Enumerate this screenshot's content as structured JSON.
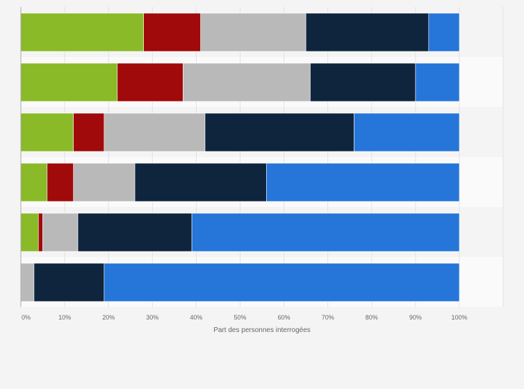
{
  "chart_data": {
    "type": "bar",
    "orientation": "horizontal",
    "stacked": true,
    "categories": [
      "",
      "",
      "",
      "",
      "",
      ""
    ],
    "x_ticks": [
      "0%",
      "10%",
      "20%",
      "30%",
      "40%",
      "50%",
      "60%",
      "70%",
      "80%",
      "90%",
      "100%"
    ],
    "xlim": [
      0,
      100
    ],
    "xlabel": "Part des personnes interrogées",
    "ylabel": "",
    "title": "",
    "grid": true,
    "legend": "none",
    "series": [
      {
        "color": "#8aba27",
        "values": [
          28,
          22,
          12,
          6,
          4,
          0
        ]
      },
      {
        "color": "#a00a0a",
        "values": [
          13,
          15,
          7,
          6,
          1,
          0
        ]
      },
      {
        "color": "#b9b9b9",
        "values": [
          24,
          29,
          23,
          14,
          8,
          3
        ]
      },
      {
        "color": "#0f253e",
        "values": [
          28,
          24,
          34,
          30,
          26,
          16
        ]
      },
      {
        "color": "#2675d9",
        "values": [
          7,
          10,
          24,
          44,
          61,
          81
        ]
      }
    ]
  }
}
